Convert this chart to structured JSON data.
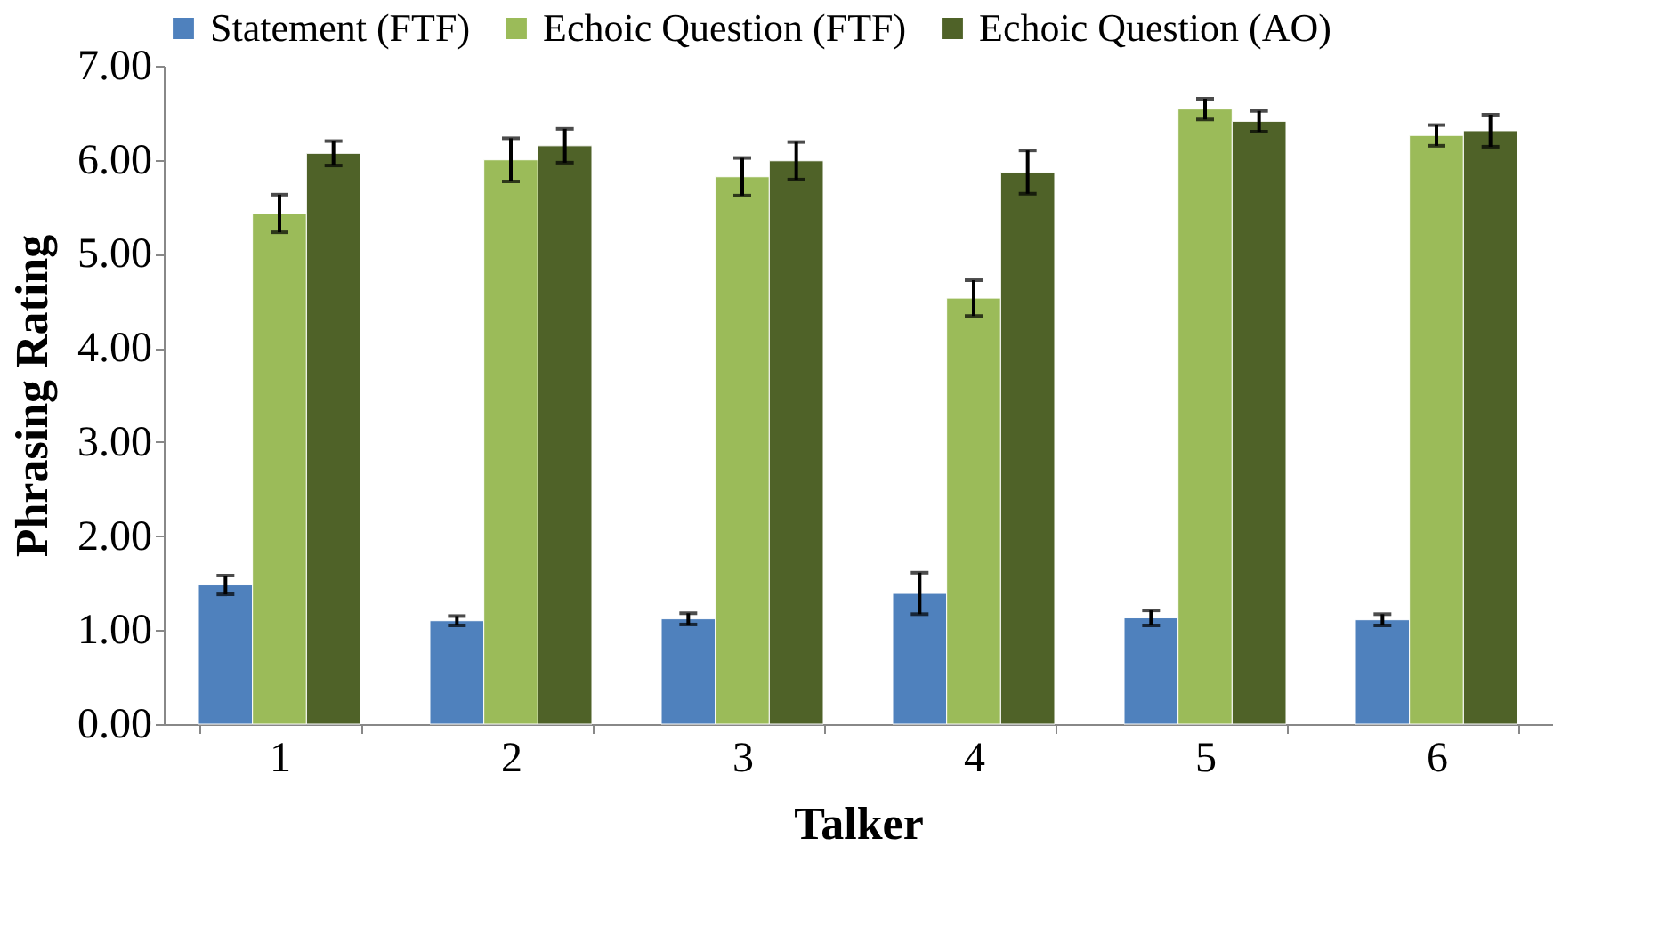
{
  "chart_data": {
    "type": "bar",
    "xlabel": "Talker",
    "ylabel": "Phrasing Rating",
    "categories": [
      "1",
      "2",
      "3",
      "4",
      "5",
      "6"
    ],
    "series": [
      {
        "name": "Statement (FTF)",
        "color": "#4f81bd",
        "values": [
          1.48,
          1.1,
          1.12,
          1.39,
          1.13,
          1.11
        ],
        "errors": [
          0.1,
          0.05,
          0.06,
          0.22,
          0.08,
          0.06
        ]
      },
      {
        "name": "Echoic Question (FTF)",
        "color": "#9bbb59",
        "values": [
          5.43,
          6.0,
          5.82,
          4.53,
          6.54,
          6.26
        ],
        "errors": [
          0.2,
          0.23,
          0.2,
          0.19,
          0.11,
          0.11
        ]
      },
      {
        "name": "Echoic Question (AO)",
        "color": "#4f6228",
        "values": [
          6.07,
          6.15,
          5.99,
          5.87,
          6.41,
          6.31
        ],
        "errors": [
          0.13,
          0.18,
          0.2,
          0.23,
          0.11,
          0.17
        ]
      }
    ],
    "ylim": [
      0,
      7
    ],
    "yticks": [
      {
        "value": 0,
        "label": "0.00"
      },
      {
        "value": 1,
        "label": "1.00"
      },
      {
        "value": 2,
        "label": "2.00"
      },
      {
        "value": 3,
        "label": "3.00"
      },
      {
        "value": 4,
        "label": "4.00"
      },
      {
        "value": 5,
        "label": "5.00"
      },
      {
        "value": 6,
        "label": "6.00"
      },
      {
        "value": 7,
        "label": "7.00"
      }
    ],
    "grid": false,
    "legend": "top"
  }
}
